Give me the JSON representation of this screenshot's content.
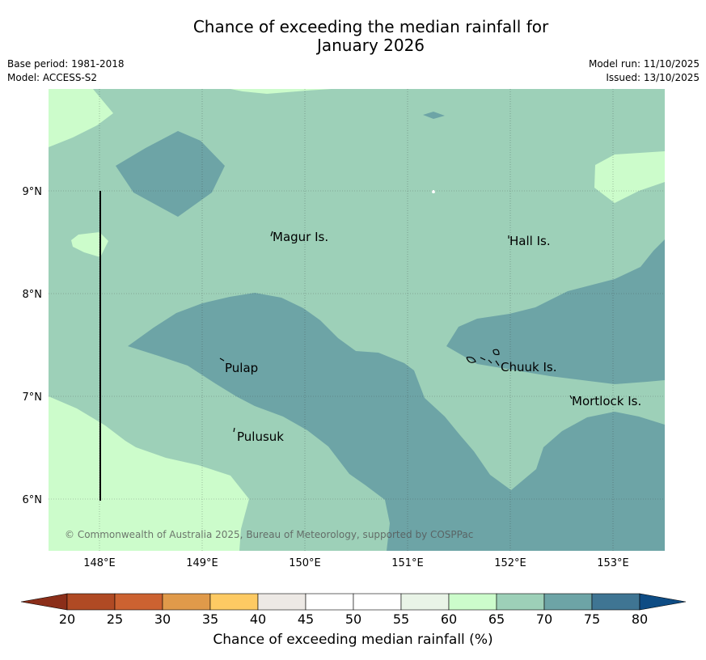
{
  "title_line1": "Chance of exceeding the median rainfall for",
  "title_line2": "January 2026",
  "base_period": "Base period: 1981-2018",
  "model": "Model: ACCESS-S2",
  "model_run": "Model run: 11/10/2025",
  "issued": "Issued: 13/10/2025",
  "copyright": "© Commonwealth of Australia 2025, Bureau of Meteorology, supported by COSPPac",
  "lat_labels": [
    "9°N",
    "8°N",
    "7°N",
    "6°N"
  ],
  "lon_labels": [
    "148°E",
    "149°E",
    "150°E",
    "151°E",
    "152°E",
    "153°E"
  ],
  "places": [
    "Magur Is.",
    "Hall Is.",
    "Pulap",
    "Chuuk Is.",
    "Mortlock Is.",
    "Pulusuk"
  ],
  "colorbar": {
    "label": "Chance of exceeding median rainfall (%)",
    "ticks": [
      "20",
      "25",
      "30",
      "35",
      "40",
      "45",
      "50",
      "55",
      "60",
      "65",
      "70",
      "75",
      "80"
    ],
    "under_color": "#8b2e19",
    "over_color": "#0e4c84",
    "colors": [
      "#b04a24",
      "#cc6231",
      "#e09a4a",
      "#fdca63",
      "#ede9e5",
      "#ffffff",
      "#ffffff",
      "#e9f4e7",
      "#ccfccb",
      "#9dd0b8",
      "#6da4a6",
      "#3f7593"
    ]
  },
  "legend_colors": {
    "c60_65": "#ccfccb",
    "c65_70": "#9dd0b8",
    "c70_75": "#6da4a6"
  }
}
